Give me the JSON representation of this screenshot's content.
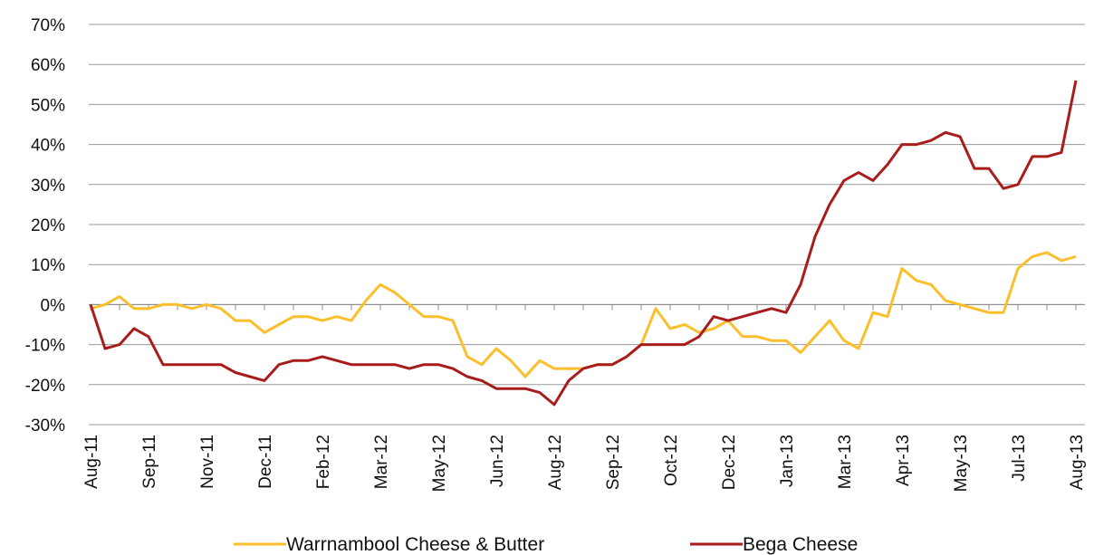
{
  "chart_data": {
    "type": "line",
    "categories": [
      "Aug-11",
      null,
      null,
      null,
      "Sep-11",
      null,
      null,
      null,
      "Nov-11",
      null,
      null,
      null,
      "Dec-11",
      null,
      null,
      null,
      "Feb-12",
      null,
      null,
      null,
      "Mar-12",
      null,
      null,
      null,
      "May-12",
      null,
      null,
      null,
      "Jun-12",
      null,
      null,
      null,
      "Aug-12",
      null,
      null,
      null,
      "Sep-12",
      null,
      null,
      null,
      "Oct-12",
      null,
      null,
      null,
      "Dec-12",
      null,
      null,
      null,
      "Jan-13",
      null,
      null,
      null,
      "Mar-13",
      null,
      null,
      null,
      "Apr-13",
      null,
      null,
      null,
      "May-13",
      null,
      null,
      null,
      "Jul-13",
      null,
      null,
      null,
      "Aug-13"
    ],
    "series": [
      {
        "name": "Warrnambool Cheese & Butter",
        "color": "#fbbf2c",
        "values": [
          -1,
          0,
          2,
          -1,
          -1,
          0,
          0,
          -1,
          0,
          -1,
          -4,
          -4,
          -7,
          -5,
          -3,
          -3,
          -4,
          -3,
          -4,
          1,
          5,
          3,
          0,
          -3,
          -3,
          -4,
          -13,
          -15,
          -11,
          -14,
          -18,
          -14,
          -16,
          -16,
          -16,
          -15,
          -15,
          -13,
          -10,
          -1,
          -6,
          -5,
          -7,
          -6,
          -4,
          -8,
          -8,
          -9,
          -9,
          -12,
          -8,
          -4,
          -9,
          -11,
          -2,
          -3,
          9,
          6,
          5,
          1,
          0,
          -1,
          -2,
          -2,
          9,
          12,
          13,
          11,
          12
        ]
      },
      {
        "name": "Bega Cheese",
        "color": "#a81c1c",
        "values": [
          0,
          -11,
          -10,
          -6,
          -8,
          -15,
          -15,
          -15,
          -15,
          -15,
          -17,
          -18,
          -19,
          -15,
          -14,
          -14,
          -13,
          -14,
          -15,
          -15,
          -15,
          -15,
          -16,
          -15,
          -15,
          -16,
          -18,
          -19,
          -21,
          -21,
          -21,
          -22,
          -25,
          -19,
          -16,
          -15,
          -15,
          -13,
          -10,
          -10,
          -10,
          -10,
          -8,
          -3,
          -4,
          -3,
          -2,
          -1,
          -2,
          5,
          17,
          25,
          31,
          33,
          31,
          35,
          40,
          40,
          41,
          43,
          42,
          34,
          34,
          29,
          30,
          37,
          37,
          38,
          56
        ]
      }
    ],
    "ylim": [
      -30,
      70
    ],
    "yticks": [
      {
        "value": -30,
        "label": "-30%"
      },
      {
        "value": -20,
        "label": "-20%"
      },
      {
        "value": -10,
        "label": "-10%"
      },
      {
        "value": 0,
        "label": "0%"
      },
      {
        "value": 10,
        "label": "10%"
      },
      {
        "value": 20,
        "label": "20%"
      },
      {
        "value": 30,
        "label": "30%"
      },
      {
        "value": 40,
        "label": "40%"
      },
      {
        "value": 50,
        "label": "50%"
      },
      {
        "value": 60,
        "label": "60%"
      },
      {
        "value": 70,
        "label": "70%"
      }
    ],
    "grid": true,
    "legend": "bottom"
  }
}
